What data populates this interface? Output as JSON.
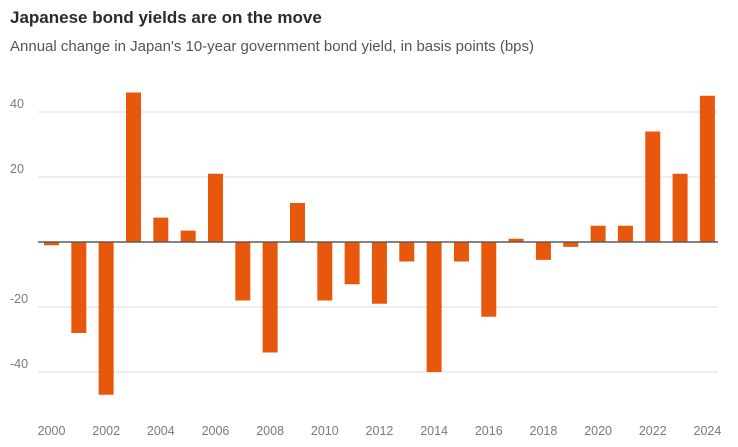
{
  "chart_data": {
    "type": "bar",
    "title": "Japanese bond yields are on the move",
    "subtitle": "Annual change in Japan's 10-year government bond yield, in basis points (bps)",
    "xlabel": "",
    "ylabel": "",
    "categories": [
      "2000",
      "2001",
      "2002",
      "2003",
      "2004",
      "2005",
      "2006",
      "2007",
      "2008",
      "2009",
      "2010",
      "2011",
      "2012",
      "2013",
      "2014",
      "2015",
      "2016",
      "2017",
      "2018",
      "2019",
      "2020",
      "2021",
      "2022",
      "2023",
      "2024"
    ],
    "values": [
      -1,
      -28,
      -47,
      46,
      7.5,
      3.5,
      21,
      -18,
      -34,
      12,
      -18,
      -13,
      -19,
      -6,
      -40,
      -6,
      -23,
      1,
      -5.5,
      -1.5,
      5,
      5,
      34,
      21,
      45
    ],
    "x_tick_labels": [
      "2000",
      "2002",
      "2004",
      "2006",
      "2008",
      "2010",
      "2012",
      "2014",
      "2016",
      "2018",
      "2020",
      "2022",
      "2024"
    ],
    "y_ticks": [
      40,
      20,
      0,
      -20,
      -40
    ],
    "y_tick_labels": [
      "40",
      "20",
      "",
      "-20",
      "-40"
    ],
    "ylim": [
      -50,
      50
    ],
    "grid": true,
    "bar_color": "#e8580c"
  }
}
